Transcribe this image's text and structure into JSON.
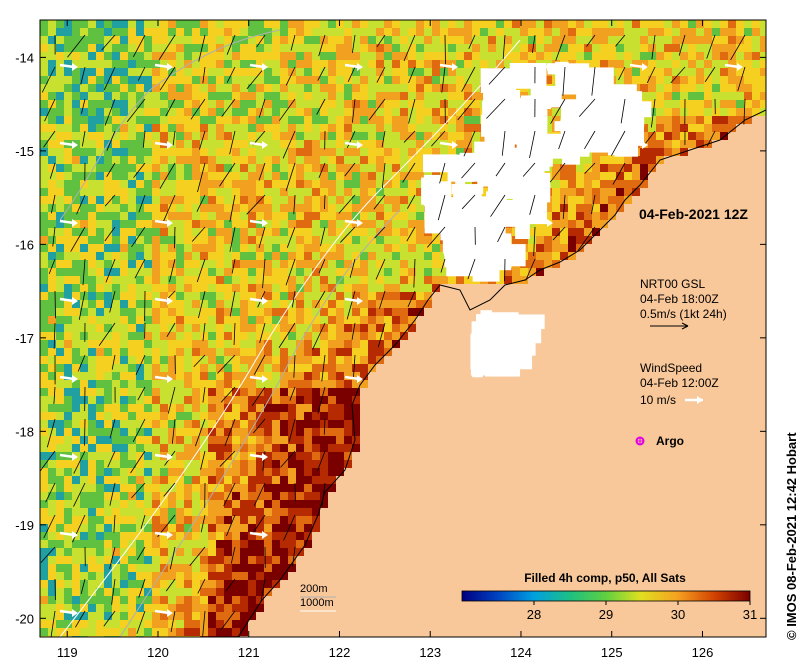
{
  "map": {
    "x_ticks": [
      "119",
      "120",
      "121",
      "122",
      "123",
      "124",
      "125",
      "126"
    ],
    "y_ticks": [
      "-14",
      "-15",
      "-16",
      "-17",
      "-18",
      "-19",
      "-20"
    ],
    "x_range": [
      118.7,
      126.7
    ],
    "y_range": [
      -20.2,
      -13.6
    ],
    "land_color": "#f9c89a",
    "sea_palette": [
      "#7a0000",
      "#b52a00",
      "#e06a10",
      "#f2a020",
      "#f5d020",
      "#c8e030",
      "#60c040",
      "#20a0a0",
      "#1060c0",
      "#000080"
    ],
    "cloud_color": "#ffffff"
  },
  "annotations": {
    "timestamp": "04-Feb-2021 12Z",
    "current_title": "NRT00 GSL",
    "current_time": "04-Feb 18:00Z",
    "current_scale": "0.5m/s (1kt 24h)",
    "wind_title": "WindSpeed",
    "wind_time": "04-Feb 12:00Z",
    "wind_scale": "10 m/s",
    "argo_label": "Argo",
    "depth_200": "200m",
    "depth_1000": "1000m"
  },
  "colorbar": {
    "title": "Filled 4h comp, p50, All Sats",
    "labels": [
      "28",
      "29",
      "30",
      "31"
    ],
    "min": 27.0,
    "max": 31.0
  },
  "credit": "© IMOS 08-Feb-2021 12:42 Hobart"
}
